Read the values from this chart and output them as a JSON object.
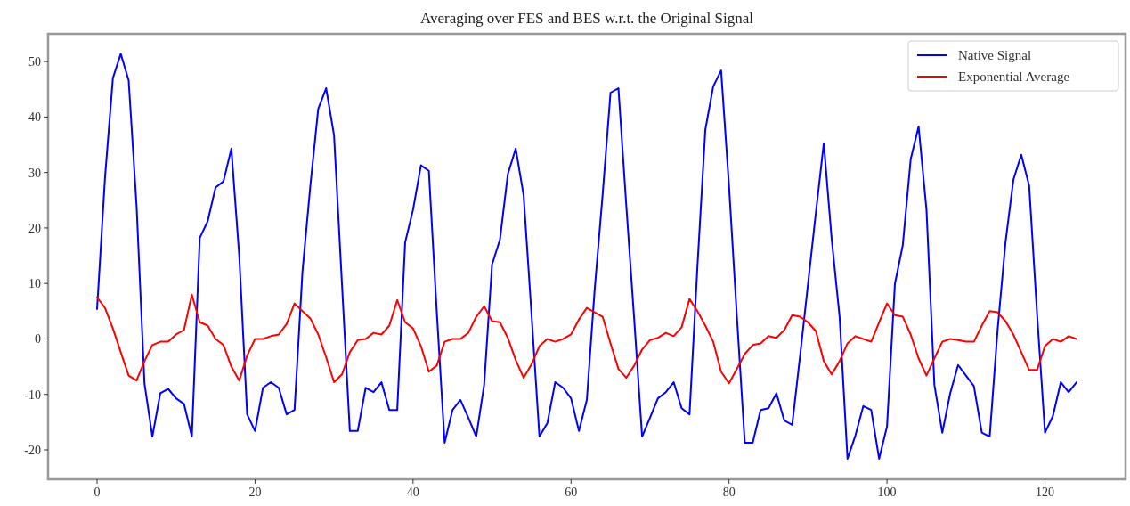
{
  "chart_data": {
    "type": "line",
    "title": "Averaging over FES and BES w.r.t. the Original Signal",
    "x": [
      0,
      1,
      2,
      3,
      4,
      5,
      6,
      7,
      8,
      9,
      10,
      11,
      12,
      13,
      14,
      15,
      16,
      17,
      18,
      19,
      20,
      21,
      22,
      23,
      24,
      25,
      26,
      27,
      28,
      29,
      30,
      31,
      32,
      33,
      34,
      35,
      36,
      37,
      38,
      39,
      40,
      41,
      42,
      43,
      44,
      45,
      46,
      47,
      48,
      49,
      50,
      51,
      52,
      53,
      54,
      55,
      56,
      57,
      58,
      59,
      60,
      61,
      62,
      63,
      64,
      65,
      66,
      67,
      68,
      69,
      70,
      71,
      72,
      73,
      74,
      75,
      76,
      77,
      78,
      79,
      80,
      81,
      82,
      83,
      84,
      85,
      86,
      87,
      88,
      89,
      90,
      91,
      92,
      93,
      94,
      95,
      96,
      97,
      98,
      99,
      100,
      101,
      102,
      103,
      104,
      105,
      106,
      107,
      108,
      109,
      110,
      111,
      112,
      113,
      114,
      115,
      116,
      117,
      118,
      119,
      120,
      121,
      122,
      123,
      124
    ],
    "series": [
      {
        "name": "Native Signal",
        "color": "#0000ff",
        "values": [
          5.4,
          29,
          47,
          51.4,
          46.6,
          24,
          -8,
          -17.6,
          -9.8,
          -9,
          -10.7,
          -11.7,
          -17.6,
          18.2,
          21.2,
          27.3,
          28.4,
          34.3,
          15,
          -13.6,
          -16.6,
          -8.8,
          -7.8,
          -8.8,
          -13.6,
          -12.8,
          12.1,
          27.6,
          41.5,
          45.2,
          36.7,
          10,
          -16.6,
          -16.6,
          -8.8,
          -9.6,
          -7.8,
          -12.8,
          -12.8,
          17.4,
          23.3,
          31.3,
          30.3,
          5,
          -18.7,
          -12.8,
          -11,
          -14.2,
          -17.6,
          -8.3,
          13.4,
          17.9,
          29.7,
          34.3,
          25.9,
          4.5,
          -17.6,
          -15.2,
          -7.8,
          -8.8,
          -10.7,
          -16.6,
          -11,
          9,
          26,
          44.4,
          45.2,
          24,
          3.5,
          -17.6,
          -14.2,
          -10.7,
          -9.6,
          -7.8,
          -12.5,
          -13.6,
          13,
          37.7,
          45.5,
          48.4,
          27.6,
          4,
          -18.7,
          -18.7,
          -12.8,
          -12.5,
          -9.8,
          -14.7,
          -15.5,
          -3,
          9.9,
          22.8,
          35.3,
          18,
          4,
          -21.6,
          -17.4,
          -12.1,
          -12.8,
          -21.6,
          -15.8,
          9.9,
          16.9,
          32.4,
          38.3,
          23.3,
          -8.3,
          -16.9,
          -9.8,
          -4.7,
          -6.6,
          -8.5,
          -16.9,
          -17.6,
          1.6,
          17.4,
          28.7,
          33.2,
          27.6,
          4.5,
          -16.9,
          -13.9,
          -7.8,
          -9.6,
          -7.8
        ]
      },
      {
        "name": "Exponential Average",
        "color": "#ff0000",
        "values": [
          7.5,
          5.6,
          1.9,
          -2.4,
          -6.6,
          -7.5,
          -4,
          -1.1,
          -0.5,
          -0.5,
          0.8,
          1.6,
          8,
          3,
          2.4,
          0,
          -1.1,
          -5,
          -7.5,
          -3,
          0,
          0,
          0.5,
          0.8,
          2.7,
          6.4,
          5,
          3.7,
          0.8,
          -3.3,
          -7.8,
          -6.4,
          -2.4,
          -0.2,
          0,
          1.1,
          0.8,
          2.4,
          7,
          3,
          1.9,
          -1.3,
          -5.9,
          -4.8,
          -0.5,
          0,
          0,
          1.1,
          4,
          5.9,
          3.2,
          3,
          0.2,
          -3.8,
          -7,
          -4.6,
          -1.3,
          0,
          -0.5,
          0,
          0.8,
          3.5,
          5.6,
          4.8,
          4,
          -0.8,
          -5.4,
          -7,
          -4.8,
          -1.9,
          -0.2,
          0.2,
          1.1,
          0.5,
          2.1,
          7.2,
          5,
          2.4,
          -0.5,
          -5.9,
          -8,
          -5.4,
          -2.7,
          -1.1,
          -0.8,
          0.5,
          0.2,
          1.6,
          4.3,
          4,
          3,
          1.4,
          -4,
          -6.4,
          -4,
          -0.8,
          0.5,
          0,
          -0.5,
          3,
          6.4,
          4.3,
          4,
          0.8,
          -3.5,
          -6.6,
          -3.5,
          -0.5,
          0,
          -0.2,
          -0.5,
          -0.5,
          2.4,
          5,
          4.8,
          3.2,
          0.8,
          -2.4,
          -5.6,
          -5.6,
          -1.3,
          0,
          -0.5,
          0.5,
          0
        ]
      }
    ],
    "xlim": [
      -6.2,
      130.2
    ],
    "xticks": [
      0,
      20,
      40,
      60,
      80,
      100,
      120
    ],
    "ylim": [
      -25.3,
      55
    ],
    "yticks": [
      -20,
      -10,
      0,
      10,
      20,
      30,
      40,
      50
    ],
    "legend": "top right",
    "grid": false,
    "line_style": "solid",
    "marker": "none"
  }
}
